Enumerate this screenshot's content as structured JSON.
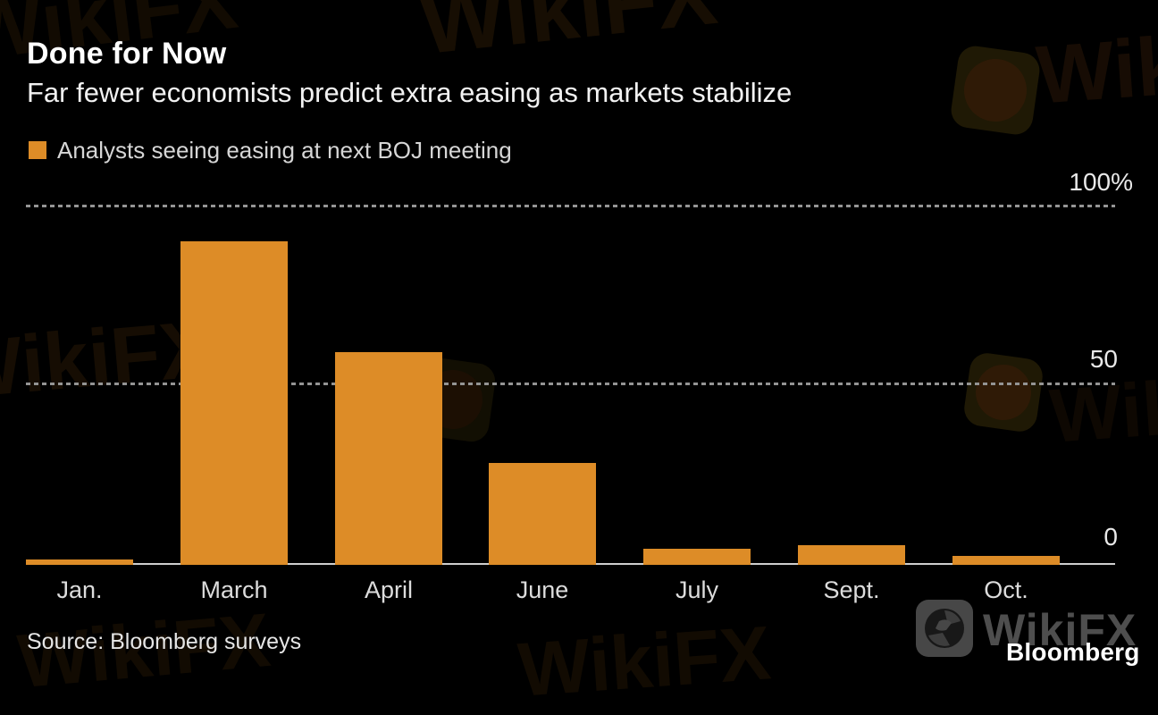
{
  "chart_data": {
    "type": "bar",
    "title": "Done for Now",
    "subtitle": "Far fewer economists predict extra easing as markets stabilize",
    "series_label": "Analysts seeing easing at next BOJ meeting",
    "categories": [
      "Jan.",
      "March",
      "April",
      "June",
      "July",
      "Sept.",
      "Oct."
    ],
    "values": [
      1,
      90,
      59,
      28,
      4,
      5,
      2
    ],
    "unit": "%",
    "xlabel": "",
    "ylabel": "",
    "ylim": [
      0,
      100
    ],
    "y_ticks": [
      100,
      50,
      0
    ],
    "y_tick_labels": [
      "100%",
      "50",
      "0"
    ],
    "grid": "horizontal-dotted",
    "legend_position": "top-left",
    "bar_color": "#DD8C27"
  },
  "header": {
    "title": "Done for Now",
    "subtitle": "Far fewer economists predict extra easing as markets stabilize"
  },
  "legend": {
    "label": "Analysts seeing easing at next BOJ meeting"
  },
  "source": "Source: Bloomberg surveys",
  "branding": {
    "publisher": "Bloomberg",
    "watermark": "WikiFX"
  },
  "colors": {
    "background": "#000000",
    "bar": "#DD8C27",
    "title_text": "#FFFFFF",
    "subtitle_text": "#F2F2F2",
    "legend_text": "#D6D6D6",
    "axis_text": "#E9E9E9",
    "category_text": "#DCDCDC",
    "gridline": "#949494",
    "baseline": "#CFCFCF",
    "source_text": "#E6E6E6",
    "watermark_gray": "#4E4E4E"
  }
}
